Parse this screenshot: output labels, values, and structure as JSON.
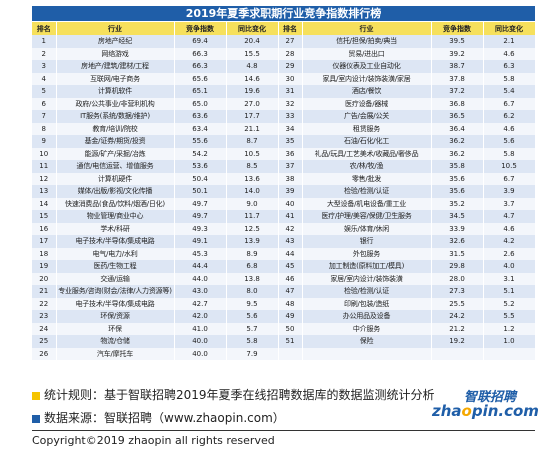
{
  "title": "2019年夏季求职期行业竞争指数排行榜",
  "headers": [
    "排名",
    "行业",
    "竞争指数",
    "同比变化",
    "排名",
    "行业",
    "竞争指数",
    "同比变化"
  ],
  "rows": [
    [
      "1",
      "房地产经纪",
      "69.4",
      "20.4",
      "27",
      "信托/担保/拍卖/典当",
      "39.5",
      "2.1"
    ],
    [
      "2",
      "网络游戏",
      "66.3",
      "15.5",
      "28",
      "贸易/进出口",
      "39.2",
      "4.6"
    ],
    [
      "3",
      "房地产/建筑/建材/工程",
      "66.3",
      "4.8",
      "29",
      "仪器仪表及工业自动化",
      "38.7",
      "6.3"
    ],
    [
      "4",
      "互联网/电子商务",
      "65.6",
      "14.6",
      "30",
      "家具/室内设计/装饰装潢/家居",
      "37.8",
      "5.8"
    ],
    [
      "5",
      "计算机软件",
      "65.1",
      "19.6",
      "31",
      "酒店/餐饮",
      "37.2",
      "5.4"
    ],
    [
      "6",
      "政府/公共事业/非营利机构",
      "65.0",
      "27.0",
      "32",
      "医疗设备/器械",
      "36.8",
      "6.7"
    ],
    [
      "7",
      "IT服务(系统/数据/维护)",
      "63.6",
      "17.7",
      "33",
      "广告/会展/公关",
      "36.5",
      "6.2"
    ],
    [
      "8",
      "教育/培训/院校",
      "63.4",
      "21.1",
      "34",
      "租赁服务",
      "36.4",
      "4.6"
    ],
    [
      "9",
      "基金/证券/期货/投资",
      "55.6",
      "8.7",
      "35",
      "石油/石化/化工",
      "36.2",
      "5.6"
    ],
    [
      "10",
      "能源/矿产/采掘/冶炼",
      "54.2",
      "10.5",
      "36",
      "礼品/玩具/工艺美术/收藏品/奢侈品",
      "36.2",
      "5.8"
    ],
    [
      "11",
      "通信/电信运营、增值服务",
      "53.6",
      "8.5",
      "37",
      "农/林/牧/渔",
      "35.8",
      "10.5"
    ],
    [
      "12",
      "计算机硬件",
      "50.4",
      "13.6",
      "38",
      "零售/批发",
      "35.6",
      "6.7"
    ],
    [
      "13",
      "媒体/出版/影视/文化传播",
      "50.1",
      "14.0",
      "39",
      "检验/检测/认证",
      "35.6",
      "3.9"
    ],
    [
      "14",
      "快速消费品(食品/饮料/烟酒/日化)",
      "49.7",
      "9.0",
      "40",
      "大型设备/机电设备/重工业",
      "35.2",
      "3.7"
    ],
    [
      "15",
      "物业管理/商业中心",
      "49.7",
      "11.7",
      "41",
      "医疗/护理/美容/保健/卫生服务",
      "34.5",
      "4.7"
    ],
    [
      "16",
      "学术/科研",
      "49.3",
      "12.5",
      "42",
      "娱乐/体育/休闲",
      "33.9",
      "4.6"
    ],
    [
      "17",
      "电子技术/半导体/集成电路",
      "49.1",
      "13.9",
      "43",
      "银行",
      "32.6",
      "4.2"
    ],
    [
      "18",
      "电气/电力/水利",
      "45.3",
      "8.9",
      "44",
      "外包服务",
      "31.5",
      "2.6"
    ],
    [
      "19",
      "医药/生物工程",
      "44.4",
      "6.8",
      "45",
      "加工制造(原料加工/模具)",
      "29.8",
      "4.0"
    ],
    [
      "20",
      "交通/运输",
      "44.0",
      "13.8",
      "46",
      "家居/室内设计/装饰装潢",
      "28.0",
      "3.1"
    ],
    [
      "21",
      "专业服务/咨询(财会/法律/人力资源等)",
      "43.0",
      "8.0",
      "47",
      "检验/检测/认证",
      "27.3",
      "5.1"
    ],
    [
      "22",
      "电子技术/半导体/集成电路",
      "42.7",
      "9.5",
      "48",
      "印刷/包装/造纸",
      "25.5",
      "5.2"
    ],
    [
      "23",
      "环保/资源",
      "42.0",
      "5.6",
      "49",
      "办公用品及设备",
      "24.2",
      "5.5"
    ],
    [
      "24",
      "环保",
      "41.0",
      "5.7",
      "50",
      "中介服务",
      "21.2",
      "1.2"
    ],
    [
      "25",
      "物流/仓储",
      "40.0",
      "5.8",
      "51",
      "保险",
      "19.2",
      "1.0"
    ],
    [
      "26",
      "汽车/摩托车",
      "40.0",
      "7.9",
      "",
      "",
      "",
      ""
    ]
  ],
  "notes": {
    "rule": "统计规则：基于智联招聘2019年夏季在线招聘数据库的数据监测统计分析",
    "source": "数据来源：智联招聘（www.zhaopin.com）"
  },
  "logo": {
    "cn": "智联招聘",
    "en_pre": "zha",
    "en_o": "o",
    "en_post": "pin.com"
  },
  "copyright": "Copyright©2019 zhaopin all rights reserved"
}
